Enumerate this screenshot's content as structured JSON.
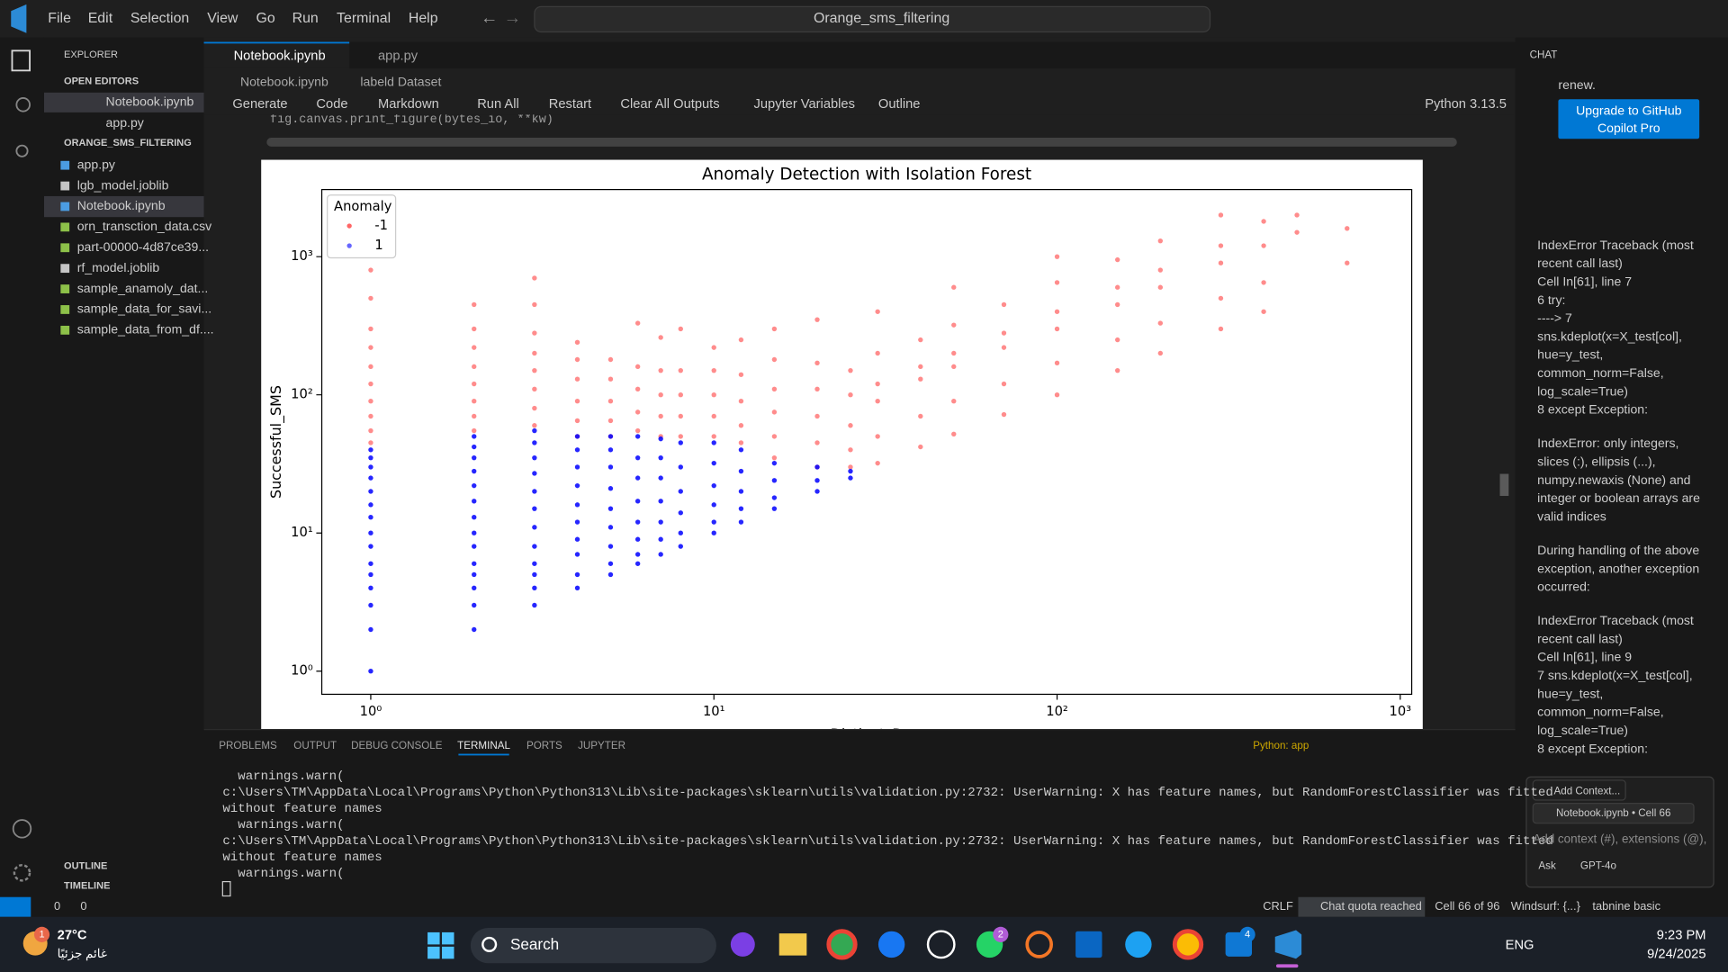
{
  "window": {
    "menu": [
      "File",
      "Edit",
      "Selection",
      "View",
      "Go",
      "Run",
      "Terminal",
      "Help"
    ],
    "search": "Orange_sms_filtering"
  },
  "explorer": {
    "title": "EXPLORER",
    "open_editors_title": "OPEN EDITORS",
    "open_editors": [
      "Notebook.ipynb",
      "app.py"
    ],
    "folder": "ORANGE_SMS_FILTERING",
    "files": [
      "app.py",
      "lgb_model.joblib",
      "Notebook.ipynb",
      "orn_transction_data.csv",
      "part-00000-4d87ce39...",
      "rf_model.joblib",
      "sample_anamoly_dat...",
      "sample_data_for_savi...",
      "sample_data_from_df...."
    ],
    "outline": "OUTLINE",
    "timeline": "TIMELINE"
  },
  "editor": {
    "tabs": [
      "Notebook.ipynb",
      "app.py"
    ],
    "breadcrumb": [
      "Notebook.ipynb",
      "labeld Dataset"
    ],
    "toolbar": [
      "Generate",
      "Code",
      "Markdown",
      "Run All",
      "Restart",
      "Clear All Outputs",
      "Jupyter Variables",
      "Outline"
    ],
    "kernel": "Python 3.13.5",
    "code_fragment": "fig.canvas.print_figure(bytes_io, **kw)"
  },
  "chart_data": {
    "type": "scatter",
    "title": "Anomaly Detection with Isolation Forest",
    "xlabel": "Distinct_D",
    "ylabel": "Successful_SMS",
    "legend_title": "Anomaly",
    "legend": "upper left",
    "xscale": "log",
    "yscale": "log",
    "xlim": [
      0.72,
      1080
    ],
    "ylim": [
      0.68,
      3060
    ],
    "xticks": [
      {
        "value": 1,
        "label": "10⁰"
      },
      {
        "value": 10,
        "label": "10¹"
      },
      {
        "value": 100,
        "label": "10²"
      },
      {
        "value": 1000,
        "label": "10³"
      }
    ],
    "yticks": [
      {
        "value": 1,
        "label": "10⁰"
      },
      {
        "value": 10,
        "label": "10¹"
      },
      {
        "value": 100,
        "label": "10²"
      },
      {
        "value": 1000,
        "label": "10³"
      }
    ],
    "series": [
      {
        "name": "-1",
        "color": "#ff0000",
        "x": [
          1,
          1,
          1,
          1,
          1,
          1,
          1,
          1,
          1,
          1,
          2,
          2,
          2,
          2,
          2,
          2,
          2,
          2,
          3,
          3,
          3,
          3,
          3,
          3,
          3,
          3,
          4,
          4,
          4,
          4,
          4,
          4,
          5,
          5,
          5,
          5,
          5,
          6,
          6,
          6,
          6,
          6,
          7,
          7,
          7,
          7,
          7,
          8,
          8,
          8,
          8,
          8,
          10,
          10,
          10,
          10,
          10,
          12,
          12,
          12,
          12,
          12,
          15,
          15,
          15,
          15,
          15,
          15,
          20,
          20,
          20,
          20,
          20,
          20,
          25,
          25,
          25,
          25,
          25,
          30,
          30,
          30,
          30,
          30,
          30,
          40,
          40,
          40,
          40,
          40,
          50,
          50,
          50,
          50,
          50,
          50,
          70,
          70,
          70,
          70,
          70,
          100,
          100,
          100,
          100,
          100,
          100,
          150,
          150,
          150,
          150,
          150,
          200,
          200,
          200,
          200,
          200,
          300,
          300,
          300,
          300,
          300,
          400,
          400,
          400,
          400,
          500,
          500,
          700,
          700
        ],
        "y": [
          45,
          55,
          70,
          90,
          120,
          160,
          220,
          300,
          500,
          800,
          55,
          70,
          90,
          120,
          160,
          220,
          300,
          450,
          60,
          80,
          110,
          150,
          200,
          280,
          450,
          700,
          50,
          65,
          90,
          130,
          180,
          240,
          50,
          65,
          90,
          130,
          180,
          55,
          75,
          110,
          160,
          330,
          50,
          70,
          100,
          150,
          260,
          50,
          70,
          100,
          150,
          300,
          50,
          70,
          100,
          150,
          220,
          45,
          60,
          90,
          140,
          250,
          35,
          50,
          75,
          110,
          180,
          300,
          30,
          45,
          70,
          110,
          170,
          350,
          30,
          40,
          60,
          100,
          150,
          32,
          50,
          90,
          120,
          200,
          400,
          42,
          70,
          130,
          160,
          250,
          52,
          90,
          160,
          200,
          320,
          600,
          72,
          120,
          220,
          280,
          450,
          100,
          170,
          300,
          400,
          650,
          1000,
          150,
          250,
          450,
          600,
          950,
          200,
          330,
          600,
          800,
          1300,
          300,
          500,
          900,
          1200,
          2000,
          400,
          650,
          1200,
          1800,
          1500,
          2000,
          900,
          1600
        ]
      },
      {
        "name": "1",
        "color": "#0000ff",
        "x": [
          1,
          1,
          1,
          1,
          1,
          1,
          1,
          1,
          1,
          1,
          1,
          1,
          1,
          1,
          1,
          2,
          2,
          2,
          2,
          2,
          2,
          2,
          2,
          2,
          2,
          2,
          2,
          2,
          2,
          3,
          3,
          3,
          3,
          3,
          3,
          3,
          3,
          3,
          3,
          3,
          3,
          4,
          4,
          4,
          4,
          4,
          4,
          4,
          4,
          4,
          4,
          5,
          5,
          5,
          5,
          5,
          5,
          5,
          5,
          5,
          6,
          6,
          6,
          6,
          6,
          6,
          6,
          6,
          7,
          7,
          7,
          7,
          7,
          7,
          7,
          8,
          8,
          8,
          8,
          8,
          8,
          10,
          10,
          10,
          10,
          10,
          10,
          12,
          12,
          12,
          12,
          12,
          15,
          15,
          15,
          15,
          20,
          20,
          20,
          25,
          25
        ],
        "y": [
          1,
          2,
          3,
          4,
          5,
          6,
          8,
          10,
          13,
          16,
          20,
          25,
          30,
          35,
          40,
          2,
          3,
          4,
          5,
          6,
          8,
          10,
          13,
          17,
          22,
          28,
          35,
          42,
          50,
          3,
          4,
          5,
          6,
          8,
          11,
          15,
          20,
          27,
          35,
          45,
          55,
          4,
          5,
          7,
          9,
          12,
          16,
          22,
          30,
          40,
          50,
          5,
          6,
          8,
          11,
          15,
          21,
          30,
          40,
          50,
          6,
          7,
          9,
          12,
          17,
          25,
          35,
          50,
          7,
          9,
          12,
          17,
          25,
          35,
          48,
          8,
          10,
          14,
          20,
          30,
          45,
          10,
          12,
          16,
          22,
          32,
          45,
          12,
          15,
          20,
          28,
          40,
          15,
          18,
          24,
          32,
          20,
          24,
          30,
          25,
          28
        ]
      }
    ]
  },
  "panel": {
    "tabs": [
      "PROBLEMS",
      "OUTPUT",
      "DEBUG CONSOLE",
      "TERMINAL",
      "PORTS",
      "JUPYTER"
    ],
    "terminal_name": "Python: app",
    "terminal_lines": [
      "  warnings.warn(",
      "c:\\Users\\TM\\AppData\\Local\\Programs\\Python\\Python313\\Lib\\site-packages\\sklearn\\utils\\validation.py:2732: UserWarning: X has feature names, but RandomForestClassifier was fitted",
      "without feature names",
      "  warnings.warn(",
      "c:\\Users\\TM\\AppData\\Local\\Programs\\Python\\Python313\\Lib\\site-packages\\sklearn\\utils\\validation.py:2732: UserWarning: X has feature names, but RandomForestClassifier was fitted",
      "without feature names",
      "  warnings.warn("
    ]
  },
  "chat": {
    "title": "CHAT",
    "notice": "renew.",
    "upgrade_button": [
      "Upgrade to GitHub",
      "Copilot Pro"
    ],
    "paragraphs": [
      [
        "IndexError Traceback (most",
        "recent call last)",
        "Cell In[61], line 7",
        "6 try:",
        "----> 7",
        "sns.kdeplot(x=X_test[col],",
        "hue=y_test,",
        "common_norm=False,",
        "log_scale=True)",
        "8 except Exception:"
      ],
      [
        "IndexError: only integers,",
        "slices (:), ellipsis (...),",
        "numpy.newaxis (None) and",
        "integer or boolean arrays are",
        "valid indices"
      ],
      [
        "During handling of the above",
        "exception, another exception",
        "occurred:"
      ],
      [
        "IndexError Traceback (most",
        "recent call last)",
        "Cell In[61], line 9",
        "7 sns.kdeplot(x=X_test[col],",
        "hue=y_test,",
        "common_norm=False,",
        "log_scale=True)",
        "8 except Exception:"
      ]
    ],
    "add_context": "Add Context...",
    "context_chip": "Notebook.ipynb • Cell 66",
    "placeholder": "Add context (#), extensions (@),",
    "mode": "Ask",
    "model": "GPT-4o"
  },
  "status_bar": {
    "errors": 0,
    "warnings": 0,
    "items": [
      "CRLF",
      "Chat quota reached",
      "Cell 66 of 96",
      "Windsurf: {...}",
      "tabnine basic"
    ]
  },
  "taskbar": {
    "temperature": "27°C",
    "weather": "غائم جزئيًا",
    "weather_badge": 1,
    "search": "Search",
    "whatsapp_badge": 2,
    "mail_badge": 4,
    "language": "ENG",
    "time": "9:23 PM",
    "date": "9/24/2025"
  }
}
